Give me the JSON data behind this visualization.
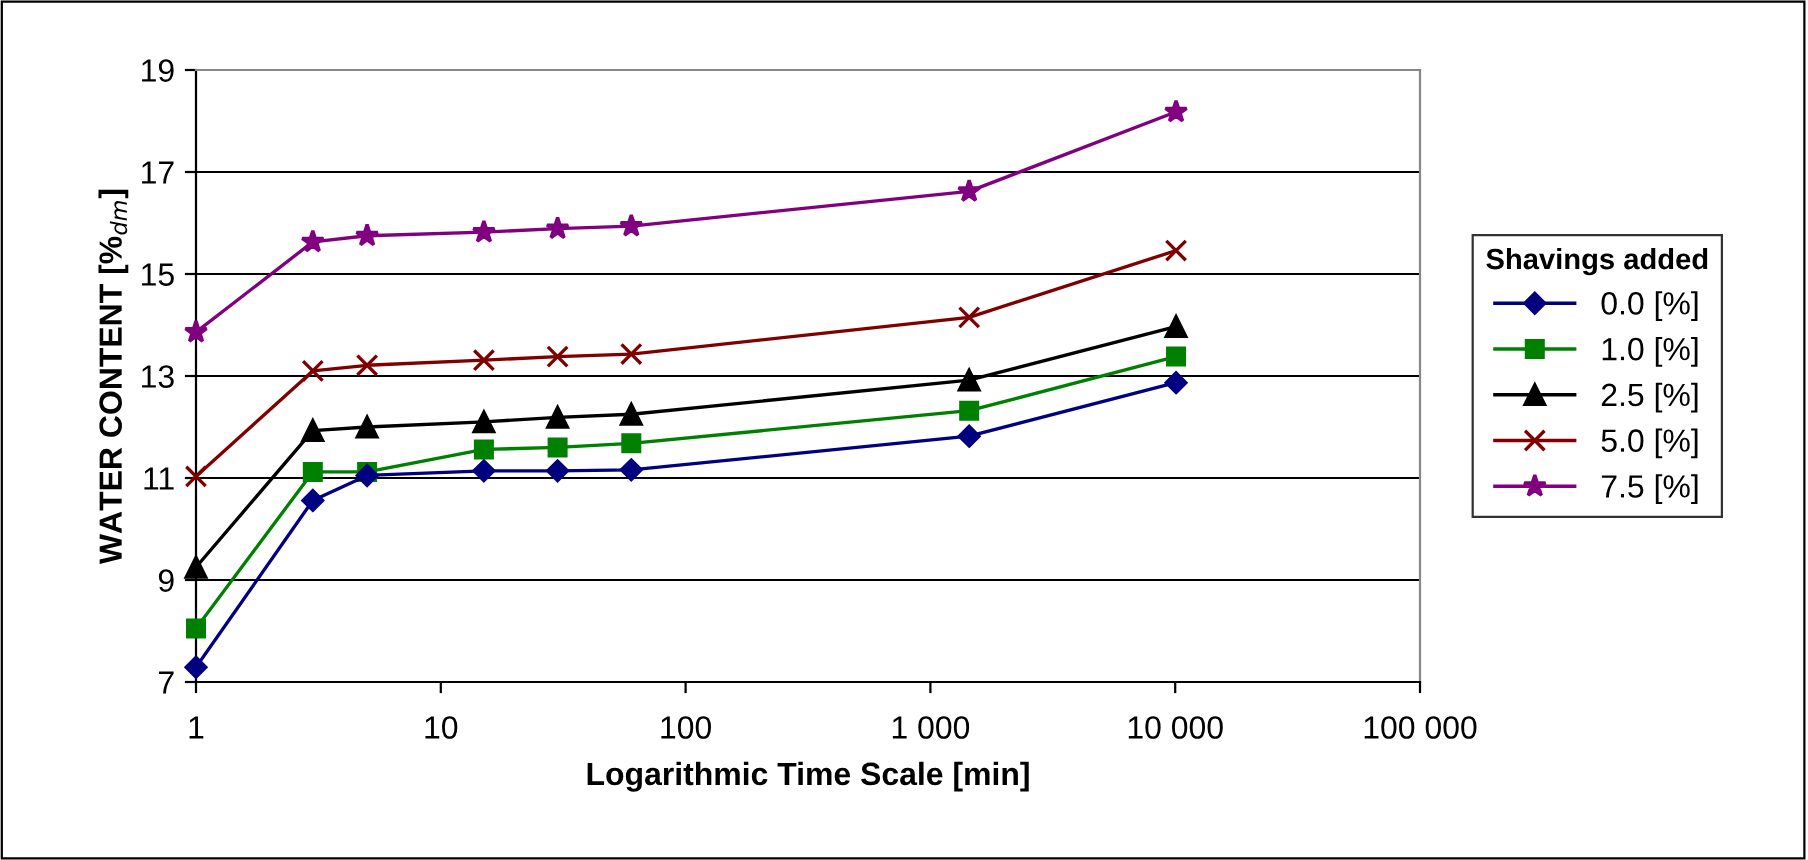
{
  "chart_data": {
    "type": "line",
    "xlabel": "Logarithmic Time Scale [min]",
    "ylabel": "WATER CONTENT [%$_{dm}$]",
    "legend_title": "Shavings added",
    "legend": "right",
    "log": "x",
    "grid": "y",
    "xlim": [
      1,
      100000
    ],
    "xticks": [
      1,
      10,
      100,
      {
        "value": 1000,
        "label": "1 000"
      },
      {
        "value": 10000,
        "label": "10 000"
      },
      {
        "value": 100000,
        "label": "100 000"
      }
    ],
    "ylim": [
      7,
      19
    ],
    "yticks": [
      7,
      9,
      11,
      13,
      15,
      17,
      19
    ],
    "x": [
      1,
      3,
      5,
      15,
      30,
      60,
      1440,
      10080
    ],
    "series": [
      {
        "name": "0.0 [%]",
        "color": "#000080",
        "marker": "diamond",
        "values": [
          7.29,
          10.56,
          11.05,
          11.14,
          11.14,
          11.16,
          11.82,
          12.87
        ]
      },
      {
        "name": "1.0 [%]",
        "color": "#008000",
        "marker": "square",
        "values": [
          8.05,
          11.12,
          11.12,
          11.56,
          11.6,
          11.68,
          12.32,
          13.38
        ]
      },
      {
        "name": "2.5 [%]",
        "color": "#000000",
        "marker": "triangle",
        "values": [
          9.25,
          11.93,
          12.0,
          12.1,
          12.19,
          12.25,
          12.92,
          13.97
        ]
      },
      {
        "name": "5.0 [%]",
        "color": "#800000",
        "marker": "cross",
        "values": [
          11.03,
          13.1,
          13.21,
          13.31,
          13.38,
          13.43,
          14.15,
          15.46
        ]
      },
      {
        "name": "7.5 [%]",
        "color": "#800080",
        "marker": "star",
        "values": [
          13.86,
          15.63,
          15.75,
          15.82,
          15.89,
          15.94,
          16.62,
          18.18
        ]
      }
    ]
  }
}
